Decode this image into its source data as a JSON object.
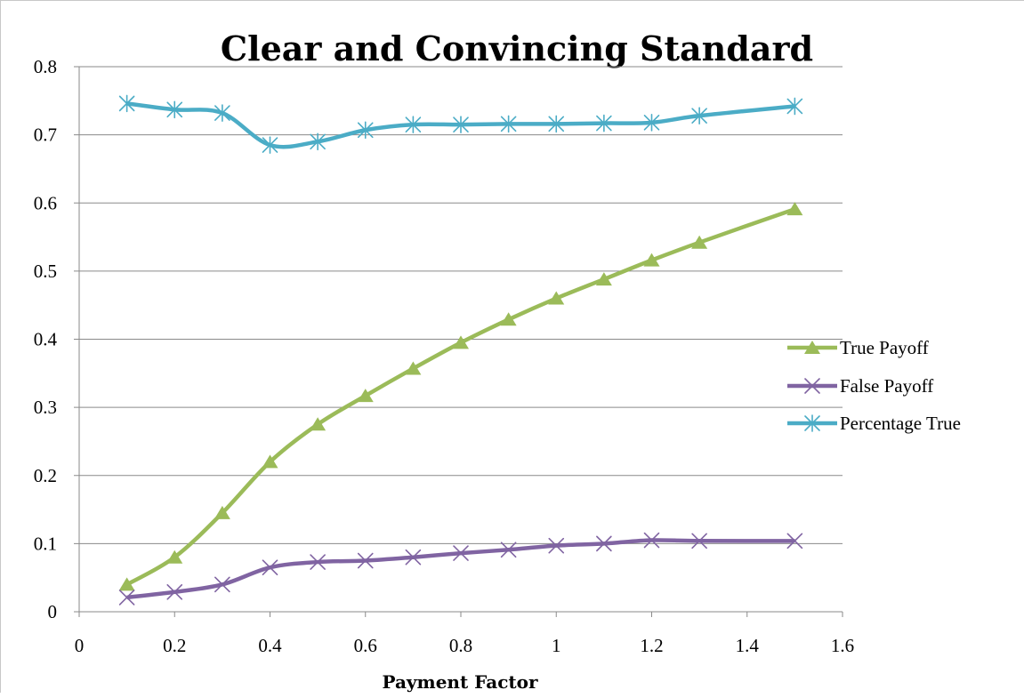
{
  "chart_data": {
    "type": "line",
    "title": "Clear and Convincing Standard",
    "xlabel": "Payment Factor",
    "ylabel": "",
    "xlim": [
      0,
      1.6
    ],
    "ylim": [
      0,
      0.8
    ],
    "x_ticks": [
      "0",
      "0.2",
      "0.4",
      "0.6",
      "0.8",
      "1",
      "1.2",
      "1.4",
      "1.6"
    ],
    "y_ticks": [
      "0",
      "0.1",
      "0.2",
      "0.3",
      "0.4",
      "0.5",
      "0.6",
      "0.7",
      "0.8"
    ],
    "grid": "horizontal",
    "legend_position": "right",
    "x": [
      0.1,
      0.2,
      0.3,
      0.4,
      0.5,
      0.6,
      0.7,
      0.8,
      0.9,
      1.0,
      1.1,
      1.2,
      1.3,
      1.5
    ],
    "series": [
      {
        "name": "True Payoff",
        "color": "#9bbb59",
        "marker": "triangle",
        "values": [
          0.04,
          0.08,
          0.145,
          0.22,
          0.275,
          0.317,
          0.357,
          0.395,
          0.429,
          0.46,
          0.488,
          0.516,
          0.542,
          0.591
        ]
      },
      {
        "name": "False Payoff",
        "color": "#8064a2",
        "marker": "x",
        "values": [
          0.021,
          0.029,
          0.04,
          0.065,
          0.073,
          0.075,
          0.08,
          0.086,
          0.091,
          0.097,
          0.1,
          0.105,
          0.104,
          0.104
        ]
      },
      {
        "name": "Percentage True",
        "color": "#4bacc6",
        "marker": "star",
        "values": [
          0.746,
          0.737,
          0.732,
          0.685,
          0.69,
          0.707,
          0.715,
          0.715,
          0.716,
          0.716,
          0.717,
          0.718,
          0.728,
          0.742
        ]
      }
    ]
  }
}
